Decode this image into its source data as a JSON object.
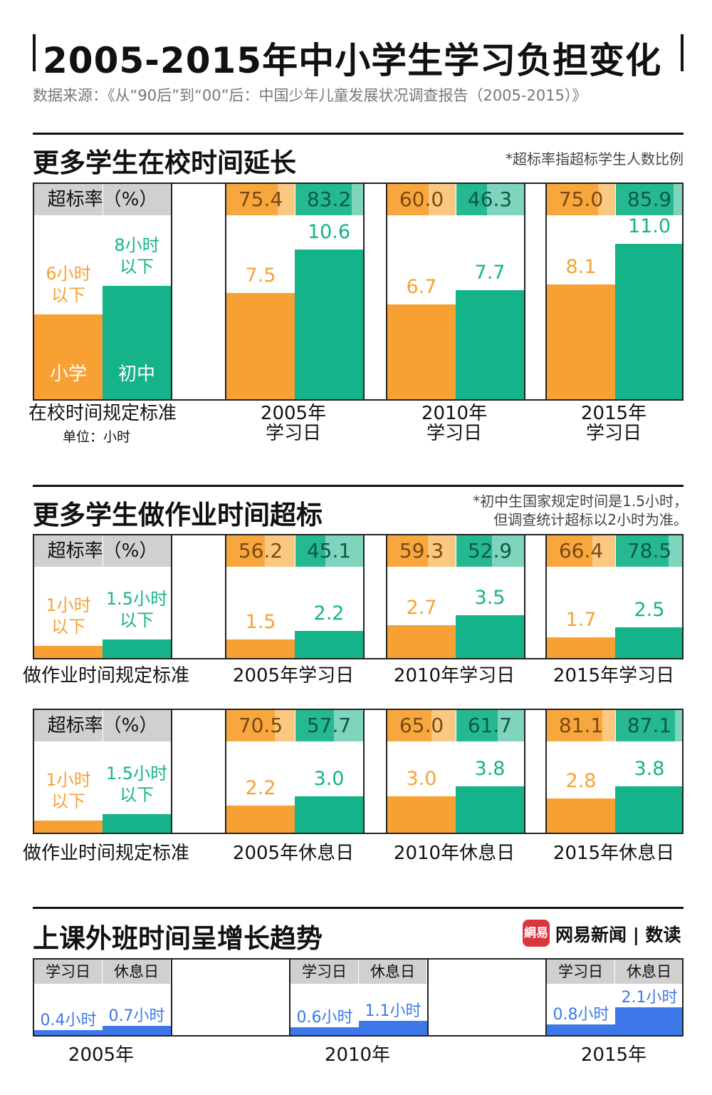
{
  "title": "2005-2015年中小学生学习负担变化",
  "source": "数据来源：《从“90后”到“00”后：中国少年儿童发展状况调查报告（2005-2015）》",
  "colors": {
    "primary": "#f7a134",
    "primary_light": "#fbc882",
    "secondary": "#15b38a",
    "secondary_light": "#7fd4bd",
    "blue": "#3c78e8",
    "grey": "#d0d0d0"
  },
  "rate_header": "超标率（%）",
  "section1": {
    "title": "更多学生在校时间延长",
    "note": "*超标率指超标学生人数比例",
    "legend": {
      "primary_label": "小学",
      "secondary_label": "初中",
      "primary_std": "6小时以下",
      "secondary_std": "8小时以下"
    },
    "std_label": "在校时间规定标准",
    "unit": "单位：小时"
  },
  "section2": {
    "title": "更多学生做作业时间超标",
    "note_line1": "*初中生国家规定时间是1.5小时，",
    "note_line2": "但调查统计超标以2小时为准。",
    "legend": {
      "primary_std": "1小时以下",
      "secondary_std": "1.5小时以下"
    },
    "std_label": "做作业时间规定标准"
  },
  "section3": {
    "title": "上课外班时间呈增长趋势",
    "logo_mark": "網易",
    "logo_text": "网易新闻 | 数读"
  },
  "chart_data": [
    {
      "type": "bar",
      "title": "更多学生在校时间延长",
      "categories": [
        "2005年学习日",
        "2010年学习日",
        "2015年学习日"
      ],
      "standard": {
        "小学": 6,
        "初中": 8
      },
      "series": [
        {
          "name": "小学",
          "values": [
            7.5,
            6.7,
            8.1
          ],
          "rates": [
            75.4,
            60.0,
            75.0
          ]
        },
        {
          "name": "初中",
          "values": [
            10.6,
            7.7,
            11.0
          ],
          "rates": [
            83.2,
            46.3,
            85.9
          ]
        }
      ],
      "unit": "小时",
      "ylim": [
        0,
        13
      ]
    },
    {
      "type": "bar",
      "title": "更多学生做作业时间超标",
      "categories": [
        "2005年学习日",
        "2010年学习日",
        "2015年学习日"
      ],
      "standard": {
        "小学": 1,
        "初中": 1.5
      },
      "series": [
        {
          "name": "小学",
          "values": [
            1.5,
            2.7,
            1.7
          ],
          "rates": [
            56.2,
            59.3,
            66.4
          ]
        },
        {
          "name": "初中",
          "values": [
            2.2,
            3.5,
            2.5
          ],
          "rates": [
            45.1,
            52.9,
            78.5
          ]
        }
      ],
      "ylim": [
        0,
        7.5
      ]
    },
    {
      "type": "bar",
      "categories": [
        "2005年休息日",
        "2010年休息日",
        "2015年休息日"
      ],
      "standard": {
        "小学": 1,
        "初中": 1.5
      },
      "series": [
        {
          "name": "小学",
          "values": [
            2.2,
            3.0,
            2.8
          ],
          "rates": [
            70.5,
            65.0,
            81.1
          ]
        },
        {
          "name": "初中",
          "values": [
            3.0,
            3.8,
            3.8
          ],
          "rates": [
            57.7,
            61.7,
            87.1
          ]
        }
      ],
      "ylim": [
        0,
        7.5
      ]
    },
    {
      "type": "bar",
      "title": "上课外班时间呈增长趋势",
      "categories": [
        "2005年",
        "2010年",
        "2015年"
      ],
      "series": [
        {
          "name": "学习日",
          "values": [
            0.4,
            0.6,
            0.8
          ],
          "labels": [
            "0.4小时",
            "0.6小时",
            "0.8小时"
          ]
        },
        {
          "name": "休息日",
          "values": [
            0.7,
            1.1,
            2.1
          ],
          "labels": [
            "0.7小时",
            "1.1小时",
            "2.1小时"
          ]
        }
      ],
      "ylim": [
        0,
        3.9
      ]
    }
  ]
}
